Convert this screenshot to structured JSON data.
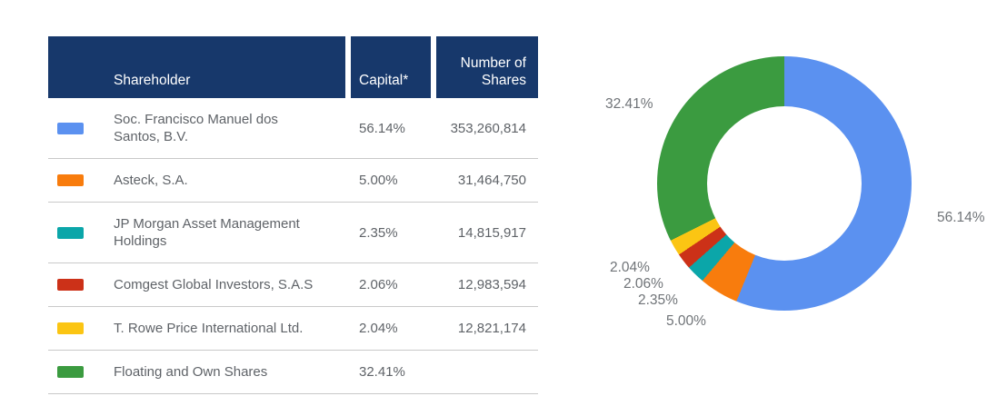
{
  "colors": {
    "header_bg": "#17386b",
    "text": "#5f6368",
    "label": "#707478",
    "border": "#c9c9c9"
  },
  "table": {
    "header": {
      "shareholder": "Shareholder",
      "capital": "Capital*",
      "shares": "Number of Shares"
    },
    "rows": [
      {
        "name": "Soc. Francisco Manuel dos Santos, B.V.",
        "capital": "56.14%",
        "shares": "353,260,814",
        "color": "#5b91f0"
      },
      {
        "name": "Asteck, S.A.",
        "capital": "5.00%",
        "shares": "31,464,750",
        "color": "#f87c0d"
      },
      {
        "name": "JP Morgan Asset Management Holdings",
        "capital": "2.35%",
        "shares": "14,815,917",
        "color": "#0ba6a9"
      },
      {
        "name": "Comgest Global Investors, S.A.S",
        "capital": "2.06%",
        "shares": "12,983,594",
        "color": "#cc3118"
      },
      {
        "name": "T. Rowe Price International Ltd.",
        "capital": "2.04%",
        "shares": "12,821,174",
        "color": "#fbc513"
      },
      {
        "name": "Floating and Own Shares",
        "capital": "32.41%",
        "shares": "",
        "color": "#3b9b40"
      }
    ]
  },
  "chart_data": {
    "type": "pie",
    "subtype": "donut",
    "title": "",
    "categories": [
      "Soc. Francisco Manuel dos Santos, B.V.",
      "Asteck, S.A.",
      "JP Morgan Asset Management Holdings",
      "Comgest Global Investors, S.A.S",
      "T. Rowe Price International Ltd.",
      "Floating and Own Shares"
    ],
    "values": [
      56.14,
      5.0,
      2.35,
      2.06,
      2.04,
      32.41
    ],
    "labels": [
      "56.14%",
      "5.00%",
      "2.35%",
      "2.06%",
      "2.04%",
      "32.41%"
    ],
    "colors": [
      "#5b91f0",
      "#f87c0d",
      "#0ba6a9",
      "#cc3118",
      "#fbc513",
      "#3b9b40"
    ],
    "start_angle_deg": 0,
    "direction": "clockwise",
    "inner_radius_ratio": 0.61,
    "legend_position": "none"
  }
}
